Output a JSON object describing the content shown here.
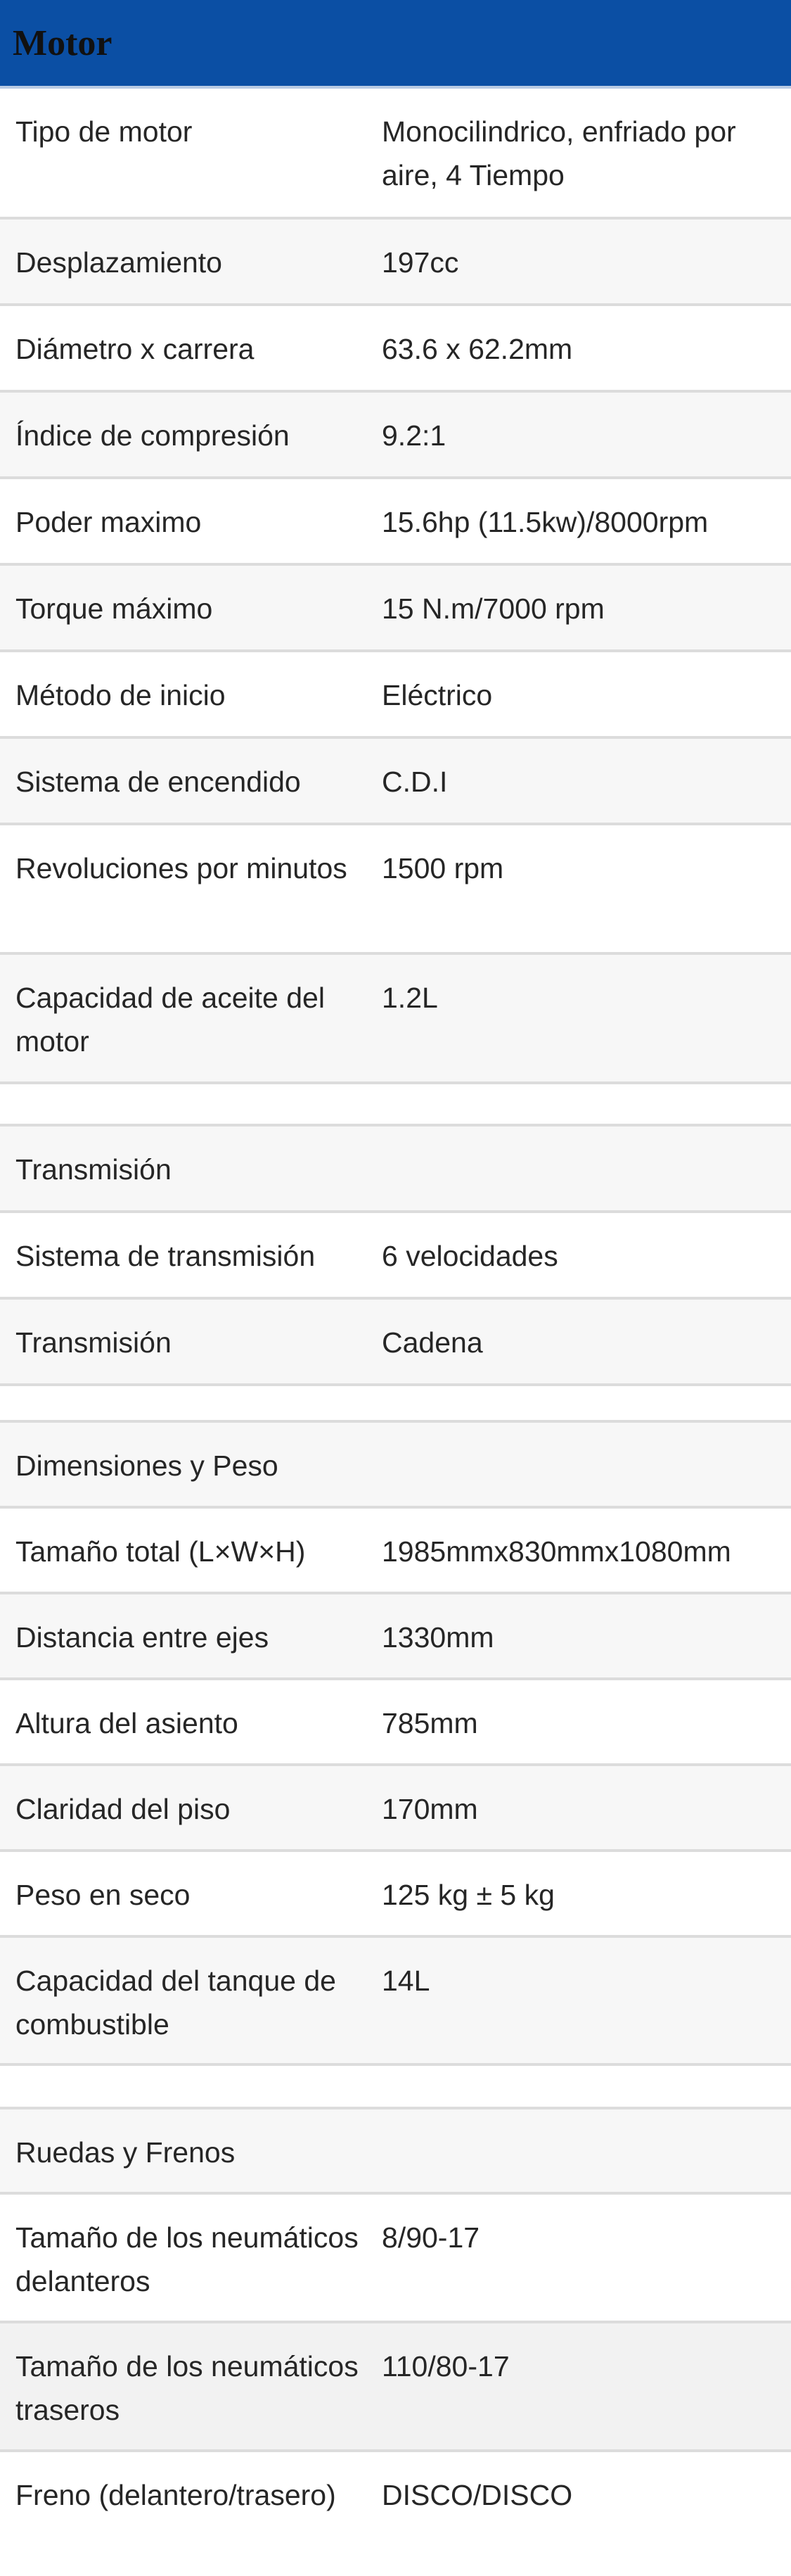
{
  "header": {
    "title": "Motor"
  },
  "motor_rows": [
    {
      "label": "Tipo de motor",
      "value": "Monocilindrico, enfriado por aire, 4 Tiempo"
    },
    {
      "label": "Desplazamiento",
      "value": "197cc"
    },
    {
      "label": "Diámetro x carrera",
      "value": "63.6 x 62.2mm"
    },
    {
      "label": "Índice de compresión",
      "value": "9.2:1"
    },
    {
      "label": "Poder maximo",
      "value": "15.6hp (11.5kw)/8000rpm"
    },
    {
      "label": "Torque máximo",
      "value": "15 N.m/7000 rpm"
    },
    {
      "label": "Método de inicio",
      "value": "Eléctrico"
    },
    {
      "label": "Sistema de encendido",
      "value": "C.D.I"
    },
    {
      "label": "Revoluciones por minutos",
      "value": "1500 rpm"
    },
    {
      "label": "Capacidad de aceite del motor",
      "value": "1.2L"
    }
  ],
  "transmision": {
    "title": "Transmisión",
    "rows": [
      {
        "label": "Sistema de transmisión",
        "value": "6 velocidades"
      },
      {
        "label": "Transmisión",
        "value": "Cadena"
      }
    ]
  },
  "dimensiones": {
    "title": "Dimensiones y Peso",
    "rows": [
      {
        "label": "Tamaño total (L×W×H)",
        "value": "1985mmx830mmx1080mm"
      },
      {
        "label": "Distancia entre ejes",
        "value": "1330mm"
      },
      {
        "label": "Altura del asiento",
        "value": "785mm"
      },
      {
        "label": "Claridad del piso",
        "value": "170mm"
      },
      {
        "label": "Peso en seco",
        "value": "125 kg ± 5 kg"
      },
      {
        "label": "Capacidad del tanque de combustible",
        "value": "14L"
      }
    ]
  },
  "ruedas": {
    "title": "Ruedas y Frenos",
    "rows": [
      {
        "label": "Tamaño de los neumáticos delanteros",
        "value": "8/90-17"
      },
      {
        "label": "Tamaño de los neumáticos traseros",
        "value": "110/80-17"
      },
      {
        "label": "Freno (delantero/trasero)",
        "value": "DISCO/DISCO"
      }
    ]
  }
}
